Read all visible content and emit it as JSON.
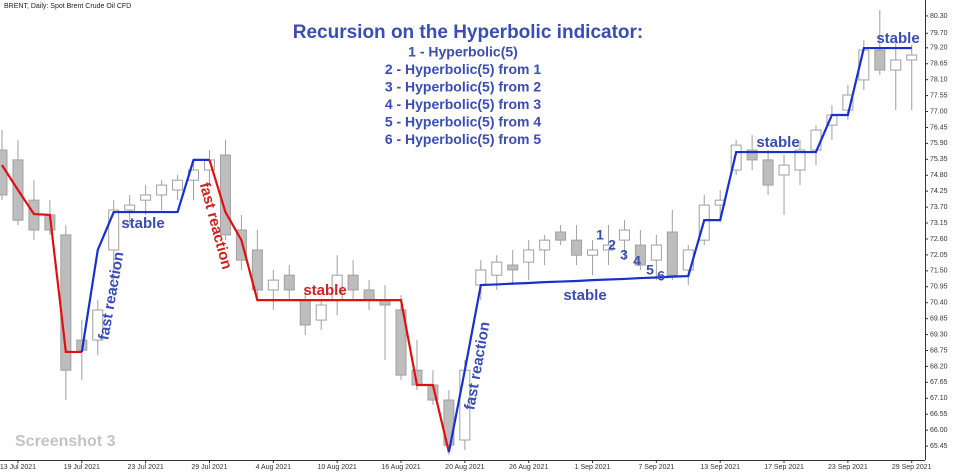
{
  "chart_data": {
    "type": "candlestick",
    "symbol_label": "BRENT, Daily: Spot Brent Crude Oil CFD",
    "title": "Recursion on the Hyperbolic indicator:",
    "subtitle_lines": [
      "1 - Hyperbolic(5)",
      "2 - Hyperbolic(5) from 1",
      "3 - Hyperbolic(5) from 2",
      "4 - Hyperbolic(5) from 3",
      "5 - Hyperbolic(5) from 4",
      "6 - Hyperbolic(5) from 5"
    ],
    "watermark": "Screenshot 3",
    "annotations": [
      {
        "text": "stable",
        "color": "#3a4db3"
      },
      {
        "text": "fast reaction",
        "color": "#3a4db3"
      },
      {
        "text": "fast reaction",
        "color": "#cc2222"
      },
      {
        "text": "stable",
        "color": "#cc2222"
      },
      {
        "text": "fast reaction",
        "color": "#3a4db3"
      },
      {
        "text": "stable",
        "color": "#3a4db3"
      },
      {
        "text": "stable",
        "color": "#3a4db3"
      },
      {
        "text": "stable",
        "color": "#3a4db3"
      },
      {
        "text": "1",
        "color": "#3a4db3"
      },
      {
        "text": "2",
        "color": "#3a4db3"
      },
      {
        "text": "3",
        "color": "#3a4db3"
      },
      {
        "text": "4",
        "color": "#3a4db3"
      },
      {
        "text": "5",
        "color": "#3a4db3"
      },
      {
        "text": "6",
        "color": "#3a4db3"
      }
    ],
    "categories": [
      null,
      "13 Jul 2021",
      null,
      null,
      null,
      "19 Jul 2021",
      null,
      null,
      null,
      "23 Jul 2021",
      null,
      null,
      null,
      "29 Jul 2021",
      null,
      null,
      null,
      "4 Aug 2021",
      null,
      null,
      null,
      "10 Aug 2021",
      null,
      null,
      null,
      "16 Aug 2021",
      null,
      null,
      null,
      "20 Aug 2021",
      null,
      null,
      null,
      "26 Aug 2021",
      null,
      null,
      null,
      "1 Sep 2021",
      null,
      null,
      null,
      "7 Sep 2021",
      null,
      null,
      null,
      "13 Sep 2021",
      null,
      null,
      null,
      "17 Sep 2021",
      null,
      null,
      null,
      "23 Sep 2021",
      null,
      null,
      null,
      "29 Sep 2021"
    ],
    "open": [
      75.67,
      75.33,
      73.94,
      73.43,
      72.74,
      69.11,
      69.11,
      72.22,
      73.6,
      73.94,
      74.12,
      74.29,
      74.63,
      74.98,
      75.5,
      72.91,
      72.22,
      70.84,
      71.35,
      70.49,
      69.8,
      70.49,
      71.35,
      70.84,
      70.49,
      70.15,
      68.07,
      67.56,
      67.04,
      65.66,
      71.01,
      71.35,
      71.7,
      71.8,
      72.22,
      72.84,
      72.56,
      72.04,
      72.22,
      72.56,
      72.39,
      71.87,
      72.84,
      71.53,
      72.56,
      73.77,
      74.98,
      75.67,
      75.33,
      74.81,
      74.98,
      75.67,
      76.53,
      77.05,
      78.09,
      79.12,
      78.43,
      78.78
    ],
    "high": [
      76.36,
      76.02,
      74.63,
      73.94,
      73.08,
      69.8,
      70.49,
      73.94,
      74.12,
      74.46,
      74.63,
      74.81,
      75.33,
      75.67,
      76.02,
      73.43,
      72.91,
      71.53,
      71.7,
      70.84,
      70.49,
      72.04,
      71.87,
      71.18,
      71.01,
      70.66,
      69.11,
      68.07,
      67.38,
      68.42,
      71.87,
      72.04,
      72.22,
      72.56,
      72.74,
      73.08,
      73.08,
      72.56,
      73.08,
      73.25,
      72.91,
      72.74,
      73.6,
      72.39,
      74.12,
      74.29,
      76.02,
      76.19,
      75.67,
      75.5,
      76.02,
      76.53,
      77.22,
      77.92,
      79.47,
      80.51,
      79.47,
      79.3
    ],
    "low": [
      73.94,
      73.08,
      72.56,
      72.74,
      67.04,
      67.73,
      68.59,
      70.84,
      73.08,
      73.43,
      73.6,
      73.94,
      73.94,
      74.46,
      72.56,
      71.53,
      70.49,
      70.15,
      70.49,
      69.28,
      69.46,
      69.97,
      70.49,
      70.15,
      68.42,
      67.73,
      67.38,
      66.87,
      65.14,
      65.31,
      70.49,
      70.84,
      71.01,
      71.18,
      71.7,
      72.39,
      71.7,
      71.35,
      71.7,
      71.87,
      71.53,
      71.18,
      71.18,
      71.01,
      72.39,
      73.25,
      74.81,
      74.98,
      74.12,
      73.43,
      74.46,
      75.15,
      76.02,
      76.71,
      77.74,
      78.26,
      77.05,
      77.05
    ],
    "close": [
      74.12,
      73.25,
      72.91,
      72.91,
      68.07,
      68.76,
      70.15,
      73.6,
      73.77,
      74.12,
      74.46,
      74.63,
      74.98,
      75.33,
      72.74,
      71.87,
      70.84,
      71.18,
      70.84,
      69.63,
      70.32,
      71.35,
      70.84,
      70.49,
      70.32,
      67.9,
      67.56,
      67.04,
      65.48,
      68.07,
      71.53,
      71.8,
      71.53,
      72.22,
      72.56,
      72.56,
      72.04,
      72.22,
      72.39,
      72.91,
      71.7,
      72.39,
      71.35,
      72.22,
      73.77,
      73.94,
      75.84,
      75.33,
      74.46,
      75.15,
      75.67,
      76.36,
      76.88,
      77.57,
      79.12,
      78.43,
      78.78,
      78.95
    ],
    "indicator": {
      "values": [
        75.15,
        74.29,
        73.46,
        73.43,
        68.7,
        68.7,
        72.22,
        73.53,
        73.53,
        73.53,
        73.53,
        73.53,
        75.33,
        75.33,
        73.53,
        72.56,
        70.49,
        70.49,
        70.49,
        70.49,
        70.49,
        70.49,
        70.49,
        70.49,
        70.49,
        70.49,
        67.56,
        67.56,
        65.24,
        68.07,
        71.01,
        71.03,
        71.06,
        71.08,
        71.11,
        71.13,
        71.15,
        71.18,
        71.2,
        71.22,
        71.25,
        71.27,
        71.3,
        71.32,
        73.25,
        73.25,
        75.6,
        75.6,
        75.6,
        75.6,
        75.6,
        75.6,
        76.88,
        76.88,
        79.19,
        79.19,
        79.19,
        79.19
      ],
      "up_color": "#1a2fd0",
      "down_color": "#e01010"
    },
    "candle_up_color": "#ffffff",
    "candle_down_color": "#bdbdbd",
    "candle_edge_color": "#a0a0a0",
    "ylim": [
      64.97,
      80.85
    ],
    "yticks": [
      {
        "value": 80.3,
        "label": "80.30"
      },
      {
        "value": 79.7,
        "label": "79.70"
      },
      {
        "value": 79.2,
        "label": "79.20"
      },
      78.65,
      {
        "value": 78.1,
        "label": "78.10"
      },
      77.55,
      {
        "value": 77,
        "label": "77.00"
      },
      76.45,
      {
        "value": 75.9,
        "label": "75.90"
      },
      75.35,
      {
        "value": 74.8,
        "label": "74.80"
      },
      74.25,
      {
        "value": 73.7,
        "label": "73.70"
      },
      73.15,
      {
        "value": 72.6,
        "label": "72.60"
      },
      72.05,
      {
        "value": 71.5,
        "label": "71.50"
      },
      70.95,
      {
        "value": 70.4,
        "label": "70.40"
      },
      69.85,
      {
        "value": 69.3,
        "label": "69.30"
      },
      68.75,
      {
        "value": 68.2,
        "label": "68.20"
      },
      67.65,
      {
        "value": 67.1,
        "label": "67.10"
      },
      66.55,
      {
        "value": 66,
        "label": "66.00"
      },
      65.45
    ],
    "grid": false
  }
}
